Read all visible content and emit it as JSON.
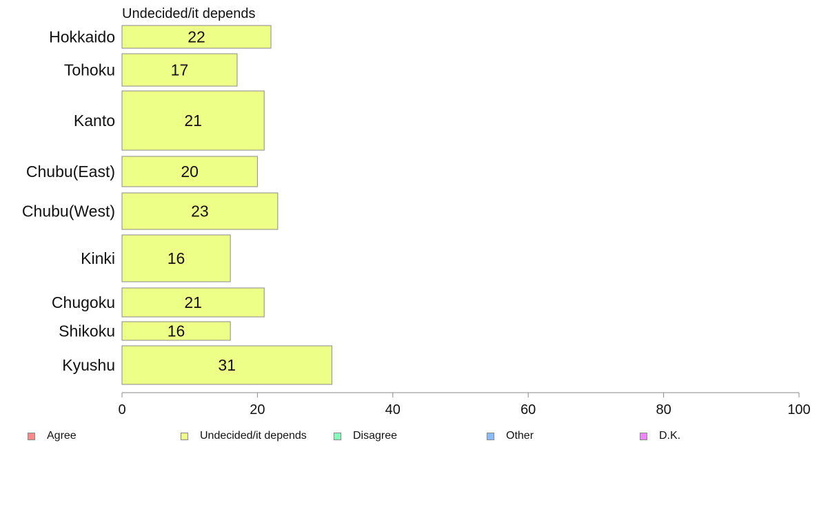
{
  "chart_data": {
    "type": "bar",
    "orientation": "horizontal",
    "title": "Undecided/it depends",
    "categories": [
      "Hokkaido",
      "Tohoku",
      "Kanto",
      "Chubu(East)",
      "Chubu(West)",
      "Kinki",
      "Chugoku",
      "Shikoku",
      "Kyushu"
    ],
    "series": [
      {
        "name": "Undecided/it depends",
        "values": [
          22,
          17,
          21,
          20,
          23,
          16,
          21,
          16,
          31
        ]
      }
    ],
    "xlim": [
      0,
      100
    ],
    "xticks": [
      "0",
      "20",
      "40",
      "60",
      "80",
      "100"
    ],
    "xlabel": "",
    "ylabel": "",
    "bar_color": "#eeff88",
    "grid": false,
    "legend": {
      "placement": "bottom",
      "entries": [
        {
          "label": "Agree",
          "color": "#ff8888"
        },
        {
          "label": "Undecided/it depends",
          "color": "#eeff88"
        },
        {
          "label": "Disagree",
          "color": "#88ffbb"
        },
        {
          "label": "Other",
          "color": "#88bbff"
        },
        {
          "label": "D.K.",
          "color": "#ee88ff"
        }
      ]
    }
  }
}
